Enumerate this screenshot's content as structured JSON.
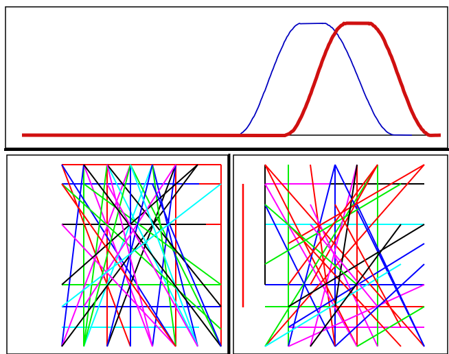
{
  "colors": {
    "blue_curve": "#0000c0",
    "red_curve": "#d01010",
    "frame": "#000000",
    "palette": [
      "#ff0000",
      "#0000ff",
      "#00ee00",
      "#ff00ff",
      "#00ffff",
      "#000000"
    ]
  },
  "top_panel": {
    "curves": [
      {
        "color": "blue",
        "shape": "bell",
        "plateau_fraction": 0.68
      },
      {
        "color": "red",
        "shape": "bell",
        "plateau_fraction": 0.79
      }
    ]
  },
  "left_panel": {
    "line_colors": [
      "red",
      "blue",
      "green",
      "magenta",
      "cyan",
      "black"
    ]
  },
  "right_panel": {
    "line_colors": [
      "red",
      "blue",
      "green",
      "magenta",
      "cyan",
      "black"
    ]
  }
}
